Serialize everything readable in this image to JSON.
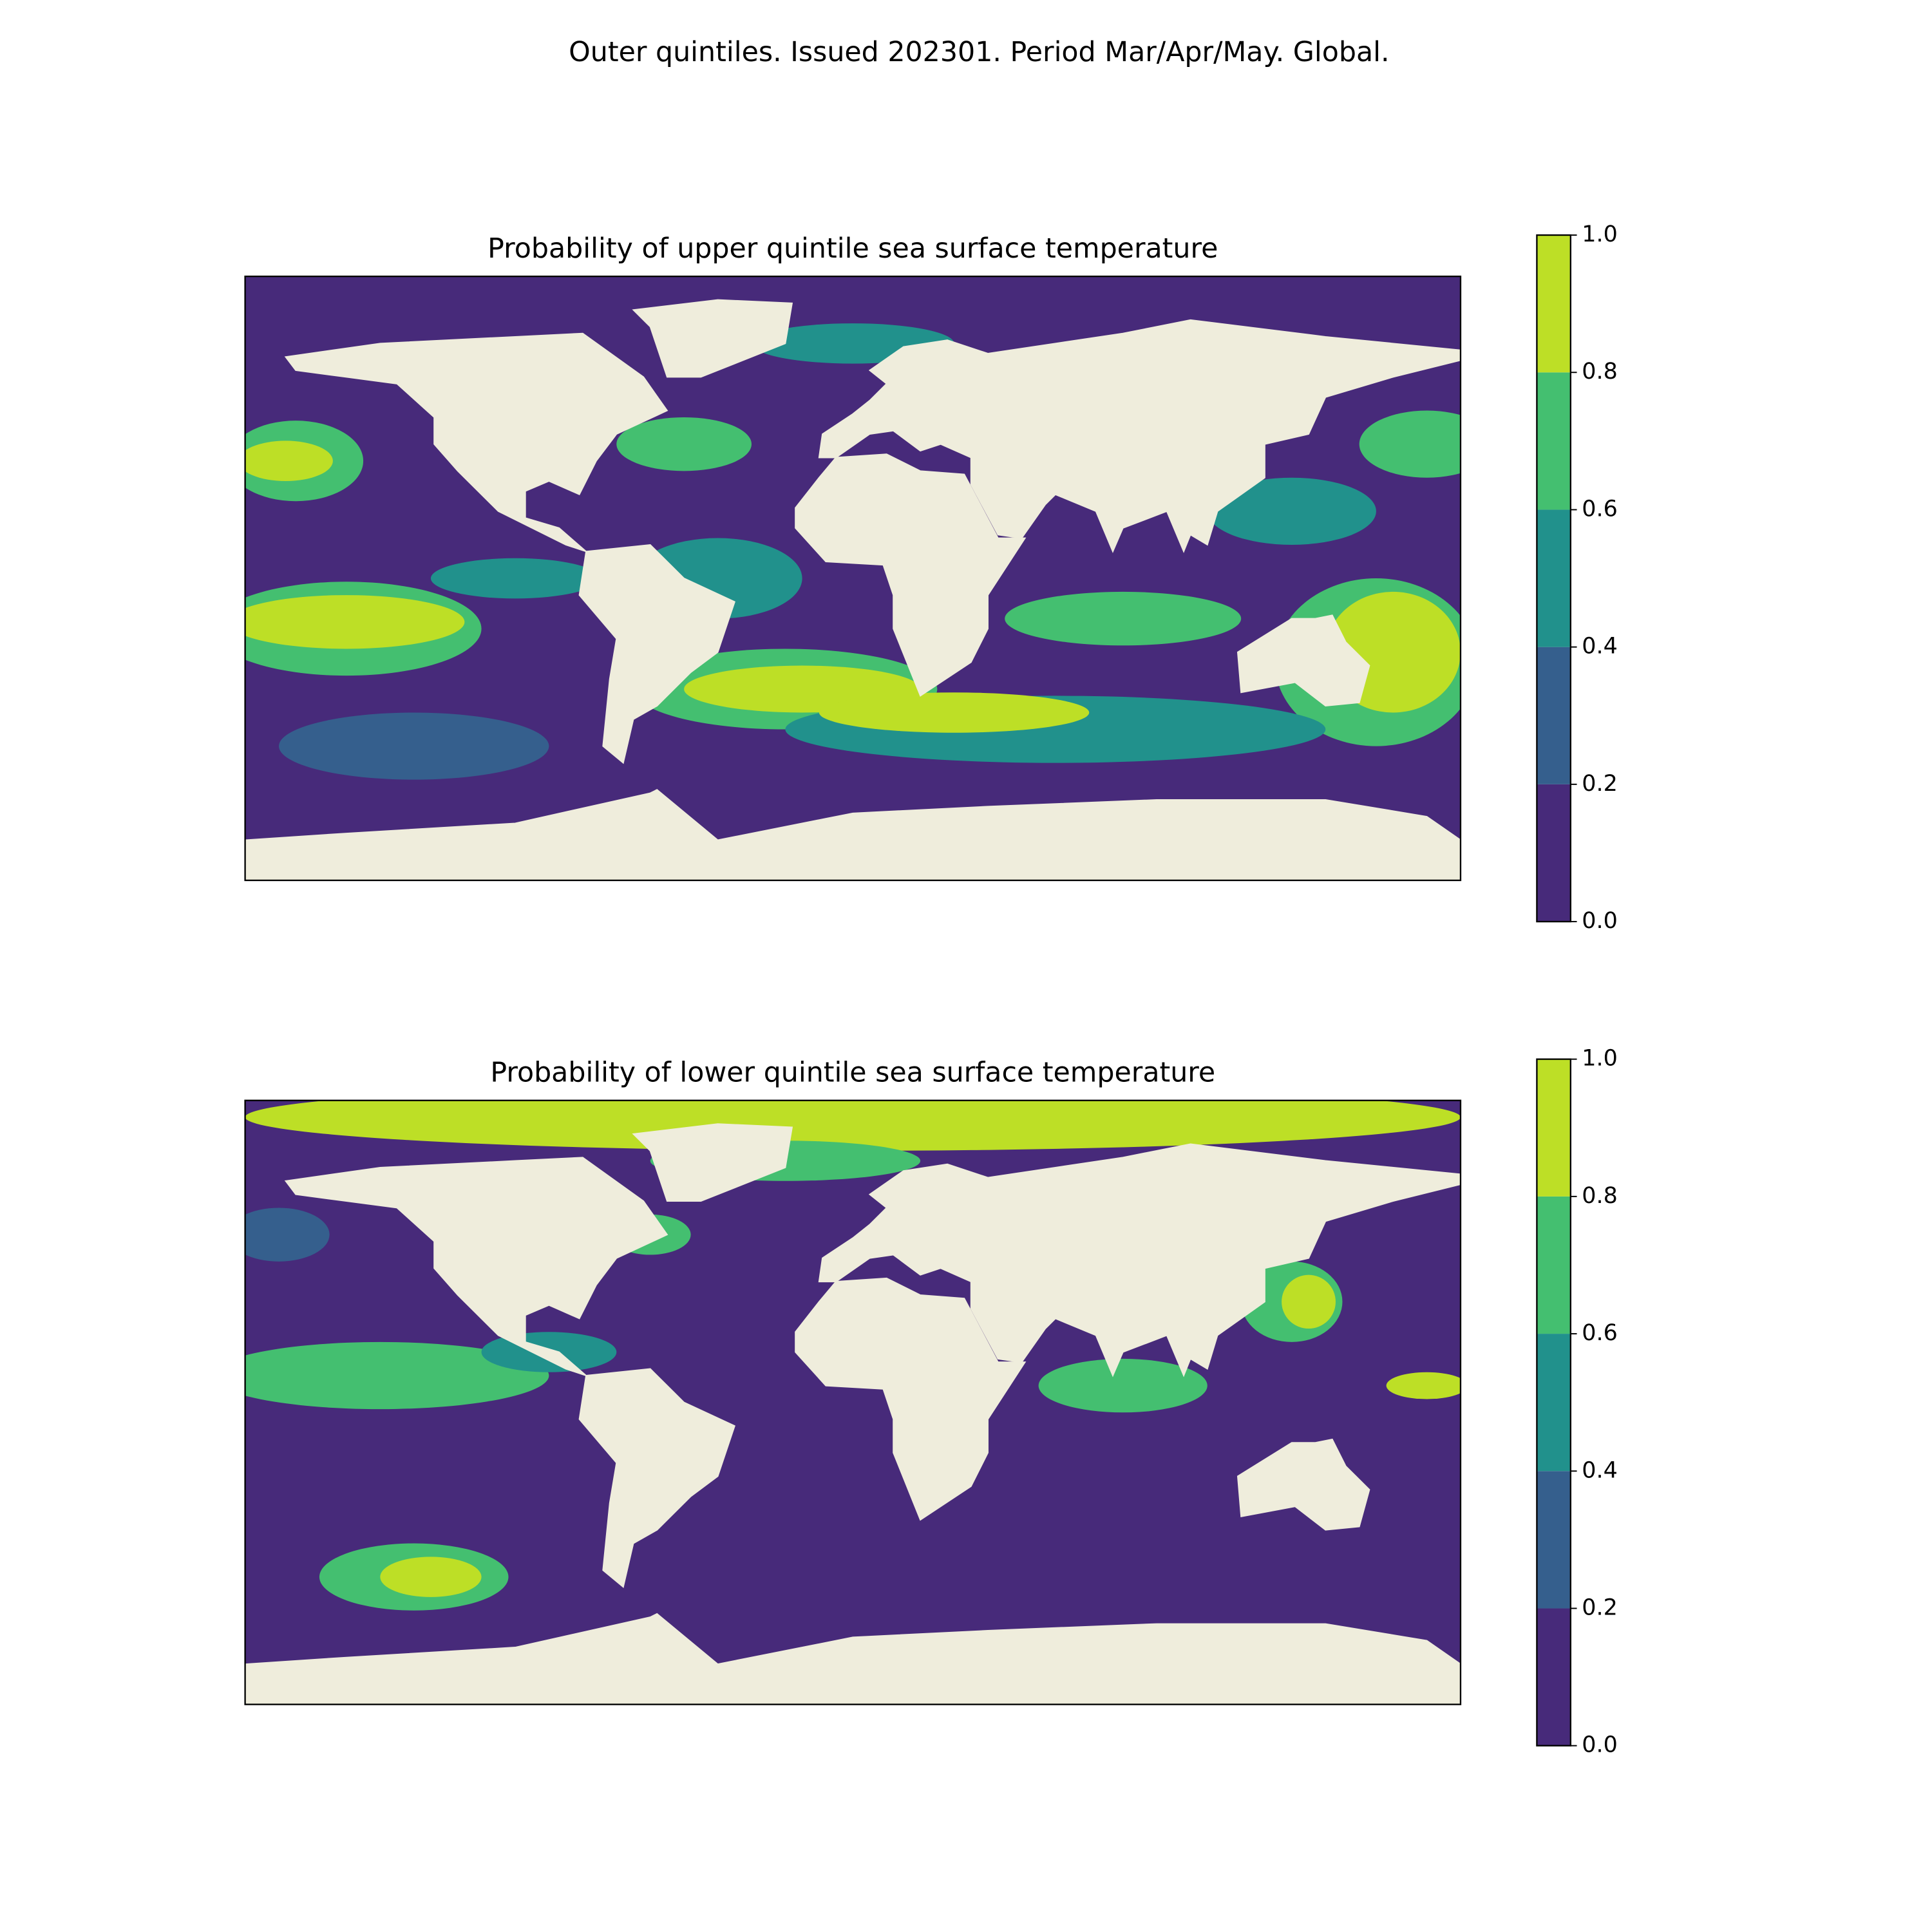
{
  "title": "Outer quintiles. Issued 202301. Period Mar/Apr/May. Global.",
  "panels": [
    {
      "title": "Probability of upper quintile sea surface temperature",
      "colorbar": {
        "ticks": [
          {
            "value": 0,
            "label": "0.0"
          },
          0.2,
          0.4,
          0.6,
          0.8,
          {
            "value": 1,
            "label": "1.0"
          }
        ],
        "colors": [
          "#472a7a",
          "#355f8d",
          "#21918c",
          "#44bf70",
          "#bddf26"
        ]
      }
    },
    {
      "title": "Probability of lower quintile sea surface temperature",
      "colorbar": {
        "ticks": [
          {
            "value": 0,
            "label": "0.0"
          },
          0.2,
          0.4,
          0.6,
          0.8,
          {
            "value": 1,
            "label": "1.0"
          }
        ],
        "colors": [
          "#472a7a",
          "#355f8d",
          "#21918c",
          "#44bf70",
          "#bddf26"
        ]
      }
    }
  ]
}
